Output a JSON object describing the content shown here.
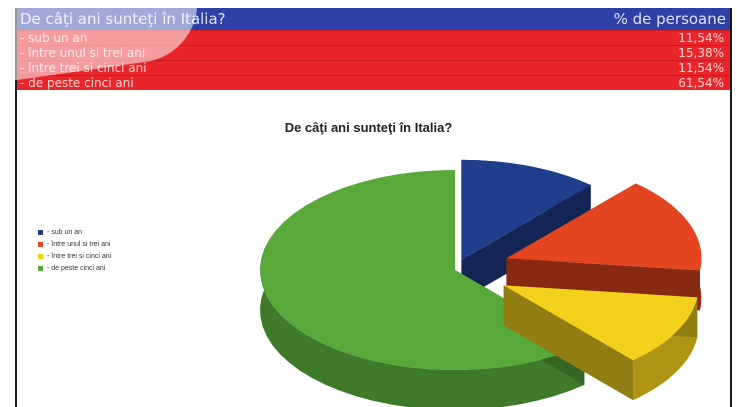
{
  "table": {
    "header_question": "De câţi ani sunteţi în Italia?",
    "header_percent": "% de persoane",
    "rows": [
      {
        "label": "- sub un an",
        "value": "11,54%"
      },
      {
        "label": "- între unul si trei ani",
        "value": "15,38%"
      },
      {
        "label": "- între trei si cinci ani",
        "value": "11,54%"
      },
      {
        "label": "- de peste cinci ani",
        "value": "61,54%"
      }
    ]
  },
  "chart_data": {
    "type": "pie",
    "title": "De câţi ani sunteţi în Italia?",
    "three_d": true,
    "exploded": true,
    "legend_position": "left",
    "categories": [
      "- sub un an",
      "- între unul si trei ani",
      "- între trei si cinci ani",
      "- de peste cinci ani"
    ],
    "values": [
      11.54,
      15.38,
      11.54,
      61.54
    ],
    "colors": [
      "#1f3e8c",
      "#e2451f",
      "#f2d01c",
      "#58a83a"
    ]
  }
}
